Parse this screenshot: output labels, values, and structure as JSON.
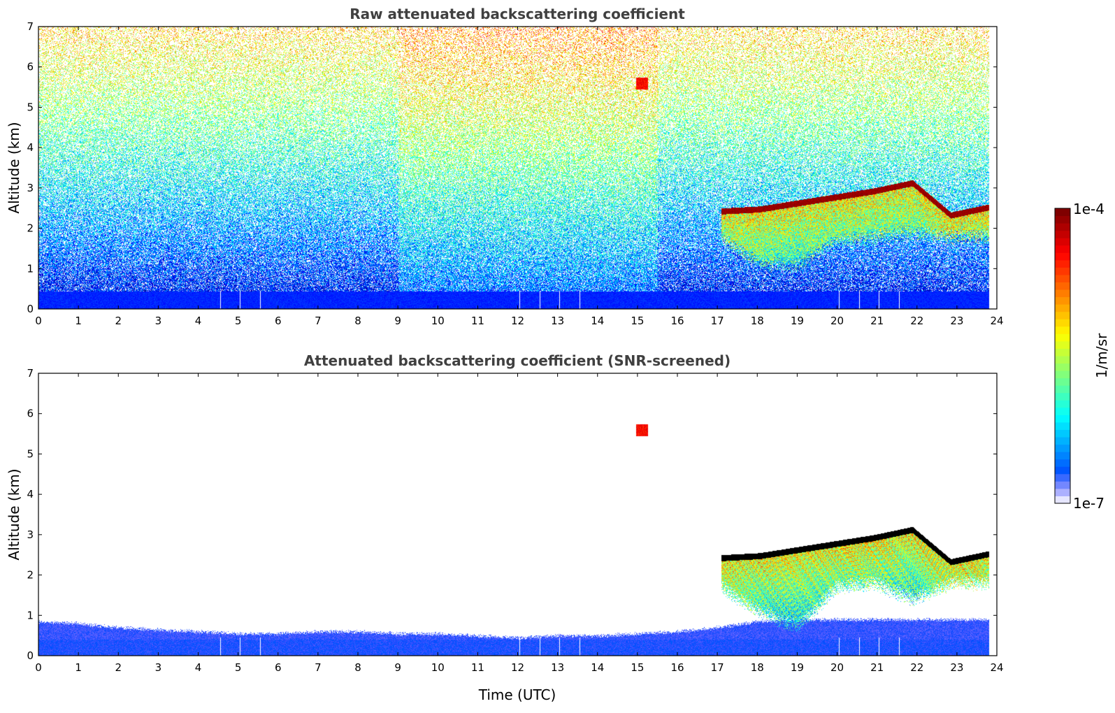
{
  "colors": {
    "jet": [
      "#00007f",
      "#0000ff",
      "#007fff",
      "#00ffff",
      "#7fff7f",
      "#ffff00",
      "#ff7f00",
      "#ff0000",
      "#7f0000"
    ],
    "background": "#ffffff"
  },
  "chart_data": [
    {
      "type": "heatmap",
      "title": "Raw attenuated backscattering coefficient",
      "xlabel": "",
      "ylabel": "Altitude (km)",
      "x_range": [
        0,
        24
      ],
      "y_range": [
        0,
        7
      ],
      "x_ticks": [
        "0",
        "1",
        "2",
        "3",
        "4",
        "5",
        "6",
        "7",
        "8",
        "9",
        "10",
        "11",
        "12",
        "13",
        "14",
        "15",
        "16",
        "17",
        "18",
        "19",
        "20",
        "21",
        "22",
        "23",
        "24"
      ],
      "y_ticks": [
        "0",
        "1",
        "2",
        "3",
        "4",
        "5",
        "6",
        "7"
      ],
      "screened": false,
      "cloud_layer": {
        "time_start_utc": 17.1,
        "time_end_utc": 23.8,
        "top_km": [
          2.5,
          2.55,
          2.7,
          2.85,
          3.0,
          3.2,
          2.4,
          2.6
        ],
        "base_km": [
          1.6,
          0.9,
          0.9,
          1.5,
          1.6,
          1.7,
          1.6,
          1.6
        ]
      },
      "elevated_feature": {
        "time_utc": 15.1,
        "altitude_km": 5.6
      }
    },
    {
      "type": "heatmap",
      "title": "Attenuated backscattering coefficient (SNR-screened)",
      "xlabel": "Time (UTC)",
      "ylabel": "Altitude (km)",
      "x_range": [
        0,
        24
      ],
      "y_range": [
        0,
        7
      ],
      "x_ticks": [
        "0",
        "1",
        "2",
        "3",
        "4",
        "5",
        "6",
        "7",
        "8",
        "9",
        "10",
        "11",
        "12",
        "13",
        "14",
        "15",
        "16",
        "17",
        "18",
        "19",
        "20",
        "21",
        "22",
        "23",
        "24"
      ],
      "y_ticks": [
        "0",
        "1",
        "2",
        "3",
        "4",
        "5",
        "6",
        "7"
      ],
      "screened": true,
      "boundary_layer_top_km": [
        0.85,
        0.8,
        0.7,
        0.65,
        0.6,
        0.55,
        0.55,
        0.6,
        0.6,
        0.55,
        0.55,
        0.5,
        0.45,
        0.5,
        0.5,
        0.55,
        0.6,
        0.7,
        0.85,
        0.9,
        0.9,
        0.9,
        0.9,
        0.9,
        0.9
      ],
      "cloud_layer": {
        "time_start_utc": 17.1,
        "time_end_utc": 23.8,
        "top_km": [
          2.5,
          2.55,
          2.7,
          2.85,
          3.0,
          3.2,
          2.4,
          2.6
        ],
        "base_km": [
          1.5,
          0.9,
          0.5,
          1.5,
          1.6,
          1.2,
          1.6,
          1.6
        ]
      },
      "elevated_feature": {
        "time_utc": 15.1,
        "altitude_km": 5.6
      }
    }
  ],
  "colorbar": {
    "label": "1/m/sr",
    "max_label": "1e-4",
    "min_label": "1e-7",
    "range": [
      1e-07,
      0.0001
    ],
    "scale": "log"
  }
}
